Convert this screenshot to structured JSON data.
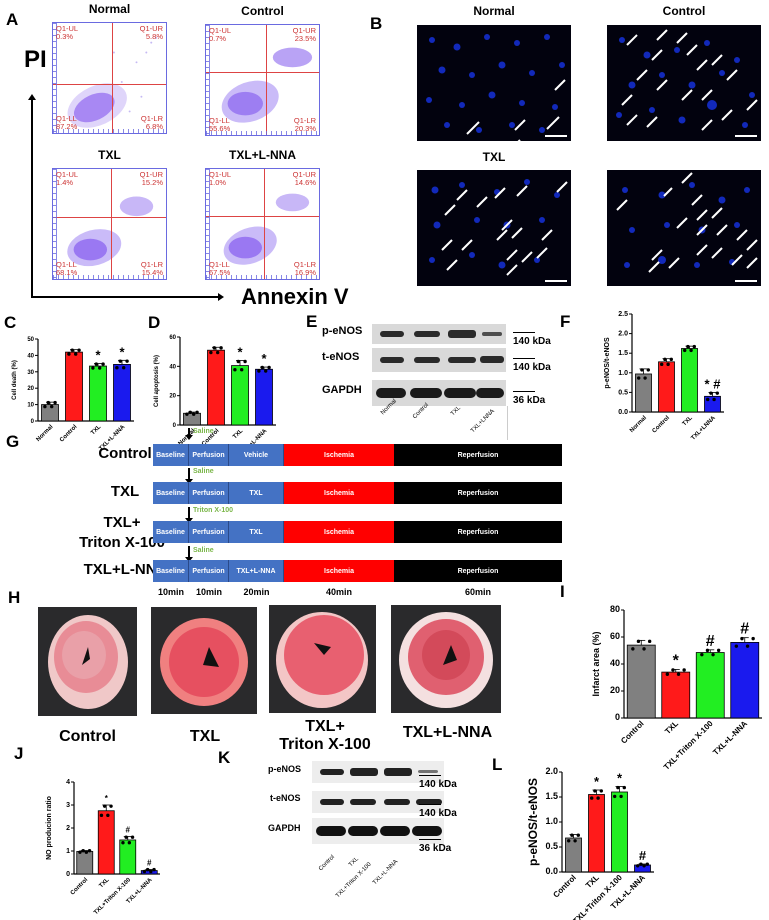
{
  "panels": {
    "A": {
      "letter": "A",
      "y_axis": "PI",
      "x_axis": "Annexin V",
      "plots": [
        {
          "title": "Normal",
          "UL_label": "Q1-UL",
          "UL": "0.3%",
          "UR_label": "Q1-UR",
          "UR": "5.8%",
          "LL_label": "Q1-LL",
          "LL": "87.2%",
          "LR_label": "Q1-LR",
          "LR": "6.8%"
        },
        {
          "title": "Control",
          "UL_label": "Q1-UL",
          "UL": "0.7%",
          "UR_label": "Q1-UR",
          "UR": "23.5%",
          "LL_label": "Q1-LL",
          "LL": "55.6%",
          "LR_label": "Q1-LR",
          "LR": "20.3%"
        },
        {
          "title": "TXL",
          "UL_label": "Q1-UL",
          "UL": "1.4%",
          "UR_label": "Q1-UR",
          "UR": "15.2%",
          "LL_label": "Q1-LL",
          "LL": "68.1%",
          "LR_label": "Q1-LR",
          "LR": "15.4%"
        },
        {
          "title": "TXL+L-NNA",
          "UL_label": "Q1-UL",
          "UL": "1.0%",
          "UR_label": "Q1-UR",
          "UR": "14.6%",
          "LL_label": "Q1-LL",
          "LL": "67.5%",
          "LR_label": "Q1-LR",
          "LR": "16.9%"
        }
      ]
    },
    "B": {
      "letter": "B",
      "titles": [
        "Normal",
        "Control",
        "TXL",
        ""
      ]
    },
    "C": {
      "letter": "C"
    },
    "D": {
      "letter": "D"
    },
    "E": {
      "letter": "E",
      "rows": [
        "p-eNOS",
        "t-eNOS",
        "GAPDH"
      ],
      "kda": [
        "140 kDa",
        "140 kDa",
        "36 kDa"
      ],
      "lanes": [
        "Normal",
        "Control",
        "TXL",
        "TXL+LNNA"
      ]
    },
    "F": {
      "letter": "F"
    },
    "G": {
      "letter": "G",
      "groups": [
        {
          "label": "Control",
          "agent": "Saline",
          "treatment": "Vehicle"
        },
        {
          "label": "TXL",
          "agent": "Saline",
          "treatment": "TXL"
        },
        {
          "label_line1": "TXL+",
          "label_line2": "Triton X-100",
          "agent": "Triton X-100",
          "treatment": "TXL"
        },
        {
          "label": "TXL+L-NNA",
          "agent": "Saline",
          "treatment": "TXL+L-NNA"
        }
      ],
      "segments": {
        "baseline": "Baseline",
        "perfusion": "Perfusion",
        "ischemia": "Ischemia",
        "reperfusion": "Reperfusion"
      },
      "times": [
        "10min",
        "10min",
        "20min",
        "40min",
        "60min"
      ]
    },
    "H": {
      "letter": "H",
      "labels": [
        "Control",
        "TXL",
        "TXL+",
        "Triton X-100",
        "TXL+L-NNA"
      ]
    },
    "I": {
      "letter": "I"
    },
    "J": {
      "letter": "J"
    },
    "K": {
      "letter": "K",
      "rows": [
        "p-eNOS",
        "t-eNOS",
        "GAPDH"
      ],
      "kda": [
        "140 kDa",
        "140 kDa",
        "36 kDa"
      ],
      "lanes": [
        "Control",
        "TXL",
        "TXL+Triton X-100",
        "TXL+L-NNA"
      ]
    },
    "L": {
      "letter": "L"
    }
  },
  "colors": {
    "normal": "#808080",
    "control": "#ff1a1a",
    "txl": "#22ee22",
    "txl_lnna": "#1a1aee",
    "ischemia": "#ff0000",
    "reperfusion": "#000000",
    "baseline": "#4472c4",
    "agent_text": "#7ab648"
  },
  "chart_data": [
    {
      "id": "C",
      "type": "bar",
      "title": "",
      "xlabel": "",
      "ylabel": "Cell death (%)",
      "categories": [
        "Normal",
        "Control",
        "TXL",
        "TXL+L-NNA"
      ],
      "values": [
        10,
        42,
        33.5,
        34.5
      ],
      "errors": [
        1.5,
        1.5,
        1.5,
        2.5
      ],
      "annotations": [
        "",
        "",
        "*",
        "*"
      ],
      "ylim": [
        0,
        50
      ],
      "yticks": [
        0,
        10,
        20,
        30,
        40,
        50
      ]
    },
    {
      "id": "D",
      "type": "bar",
      "title": "",
      "xlabel": "",
      "ylabel": "Cell apoptosis (%)",
      "categories": [
        "Normal",
        "Control",
        "TXL",
        "TXL+L-NNA"
      ],
      "values": [
        8,
        51,
        40.5,
        38
      ],
      "errors": [
        0.8,
        2,
        3.5,
        1.5
      ],
      "annotations": [
        "",
        "",
        "*",
        "*"
      ],
      "ylim": [
        0,
        60
      ],
      "yticks": [
        0,
        20,
        40,
        60
      ]
    },
    {
      "id": "F",
      "type": "bar",
      "title": "",
      "xlabel": "",
      "ylabel": "p-eNOS/t-eNOS",
      "categories": [
        "Normal",
        "Control",
        "TXL",
        "TXL+LNNA"
      ],
      "values": [
        0.97,
        1.28,
        1.62,
        0.4
      ],
      "errors": [
        0.13,
        0.08,
        0.06,
        0.1
      ],
      "annotations": [
        "",
        "",
        "",
        "* #"
      ],
      "ylim": [
        0,
        2.5
      ],
      "yticks": [
        0.0,
        0.5,
        1.0,
        1.5,
        2.0,
        2.5
      ]
    },
    {
      "id": "I",
      "type": "bar",
      "title": "",
      "xlabel": "",
      "ylabel": "Infarct area (%)",
      "categories": [
        "Control",
        "TXL",
        "TXL+Triton X-100",
        "TXL+L-NNA"
      ],
      "values": [
        54,
        34,
        48.5,
        56
      ],
      "errors": [
        3.5,
        2,
        2,
        3.5
      ],
      "annotations": [
        "",
        "*",
        "#",
        "#"
      ],
      "ylim": [
        0,
        80
      ],
      "yticks": [
        0,
        20,
        40,
        60,
        80
      ]
    },
    {
      "id": "J",
      "type": "bar",
      "title": "",
      "xlabel": "",
      "ylabel": "NO producion ratio",
      "categories": [
        "Control",
        "TXL",
        "TXL+Triton X-100",
        "TXL+L-NNA"
      ],
      "values": [
        0.98,
        2.75,
        1.48,
        0.15
      ],
      "errors": [
        0.04,
        0.25,
        0.15,
        0.05
      ],
      "annotations": [
        "",
        "*",
        "#",
        "#"
      ],
      "ylim": [
        0,
        4
      ],
      "yticks": [
        0,
        1,
        2,
        3,
        4
      ]
    },
    {
      "id": "L",
      "type": "bar",
      "title": "",
      "xlabel": "",
      "ylabel": "p-eNOS/t-eNOS",
      "categories": [
        "Control",
        "TXL",
        "TXL+Triton X-100",
        "TXL+L-NNA"
      ],
      "values": [
        0.68,
        1.55,
        1.6,
        0.14
      ],
      "errors": [
        0.07,
        0.09,
        0.11,
        0.02
      ],
      "annotations": [
        "",
        "*",
        "*",
        "#"
      ],
      "ylim": [
        0,
        2.0
      ],
      "yticks": [
        0.0,
        0.5,
        1.0,
        1.5,
        2.0
      ]
    }
  ]
}
